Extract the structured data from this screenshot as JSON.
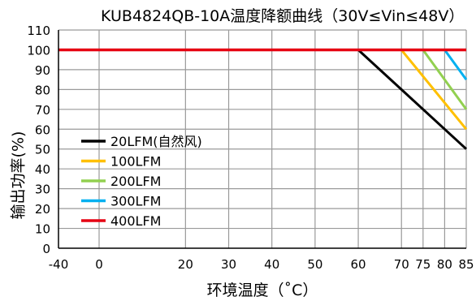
{
  "chart_data": {
    "type": "line",
    "title": "KUB4824QB-10A温度降额曲线（30V≤Vin≤48V）",
    "xlabel": "环境温度（˚C）",
    "ylabel": "输出功率(%)",
    "xlim": [
      -40,
      85
    ],
    "ylim": [
      0,
      110
    ],
    "xticks": [
      -40,
      0,
      20,
      30,
      40,
      50,
      60,
      70,
      75,
      80,
      85
    ],
    "xticklabels": [
      "-40",
      "0",
      "20",
      "30",
      "40",
      "50",
      "60",
      "70",
      "75",
      "80",
      "85"
    ],
    "yticks": [
      0,
      10,
      20,
      30,
      40,
      50,
      60,
      70,
      80,
      90,
      100,
      110
    ],
    "yticklabels": [
      "0",
      "10",
      "20",
      "30",
      "40",
      "50",
      "60",
      "70",
      "80",
      "90",
      "100",
      "110"
    ],
    "grid": true,
    "legend_position": "bottom-left",
    "series": [
      {
        "name": "20LFM(自然风)",
        "color": "#000000",
        "x": [
          -40,
          60,
          85
        ],
        "y": [
          100,
          100,
          50
        ]
      },
      {
        "name": "100LFM",
        "color": "#ffc000",
        "x": [
          -40,
          70,
          85
        ],
        "y": [
          100,
          100,
          60
        ]
      },
      {
        "name": "200LFM",
        "color": "#92d050",
        "x": [
          -40,
          75,
          85
        ],
        "y": [
          100,
          100,
          70
        ]
      },
      {
        "name": "300LFM",
        "color": "#00b0f0",
        "x": [
          -40,
          80,
          85
        ],
        "y": [
          100,
          100,
          85
        ]
      },
      {
        "name": "400LFM",
        "color": "#e60012",
        "x": [
          -40,
          85
        ],
        "y": [
          100,
          100
        ]
      }
    ]
  }
}
